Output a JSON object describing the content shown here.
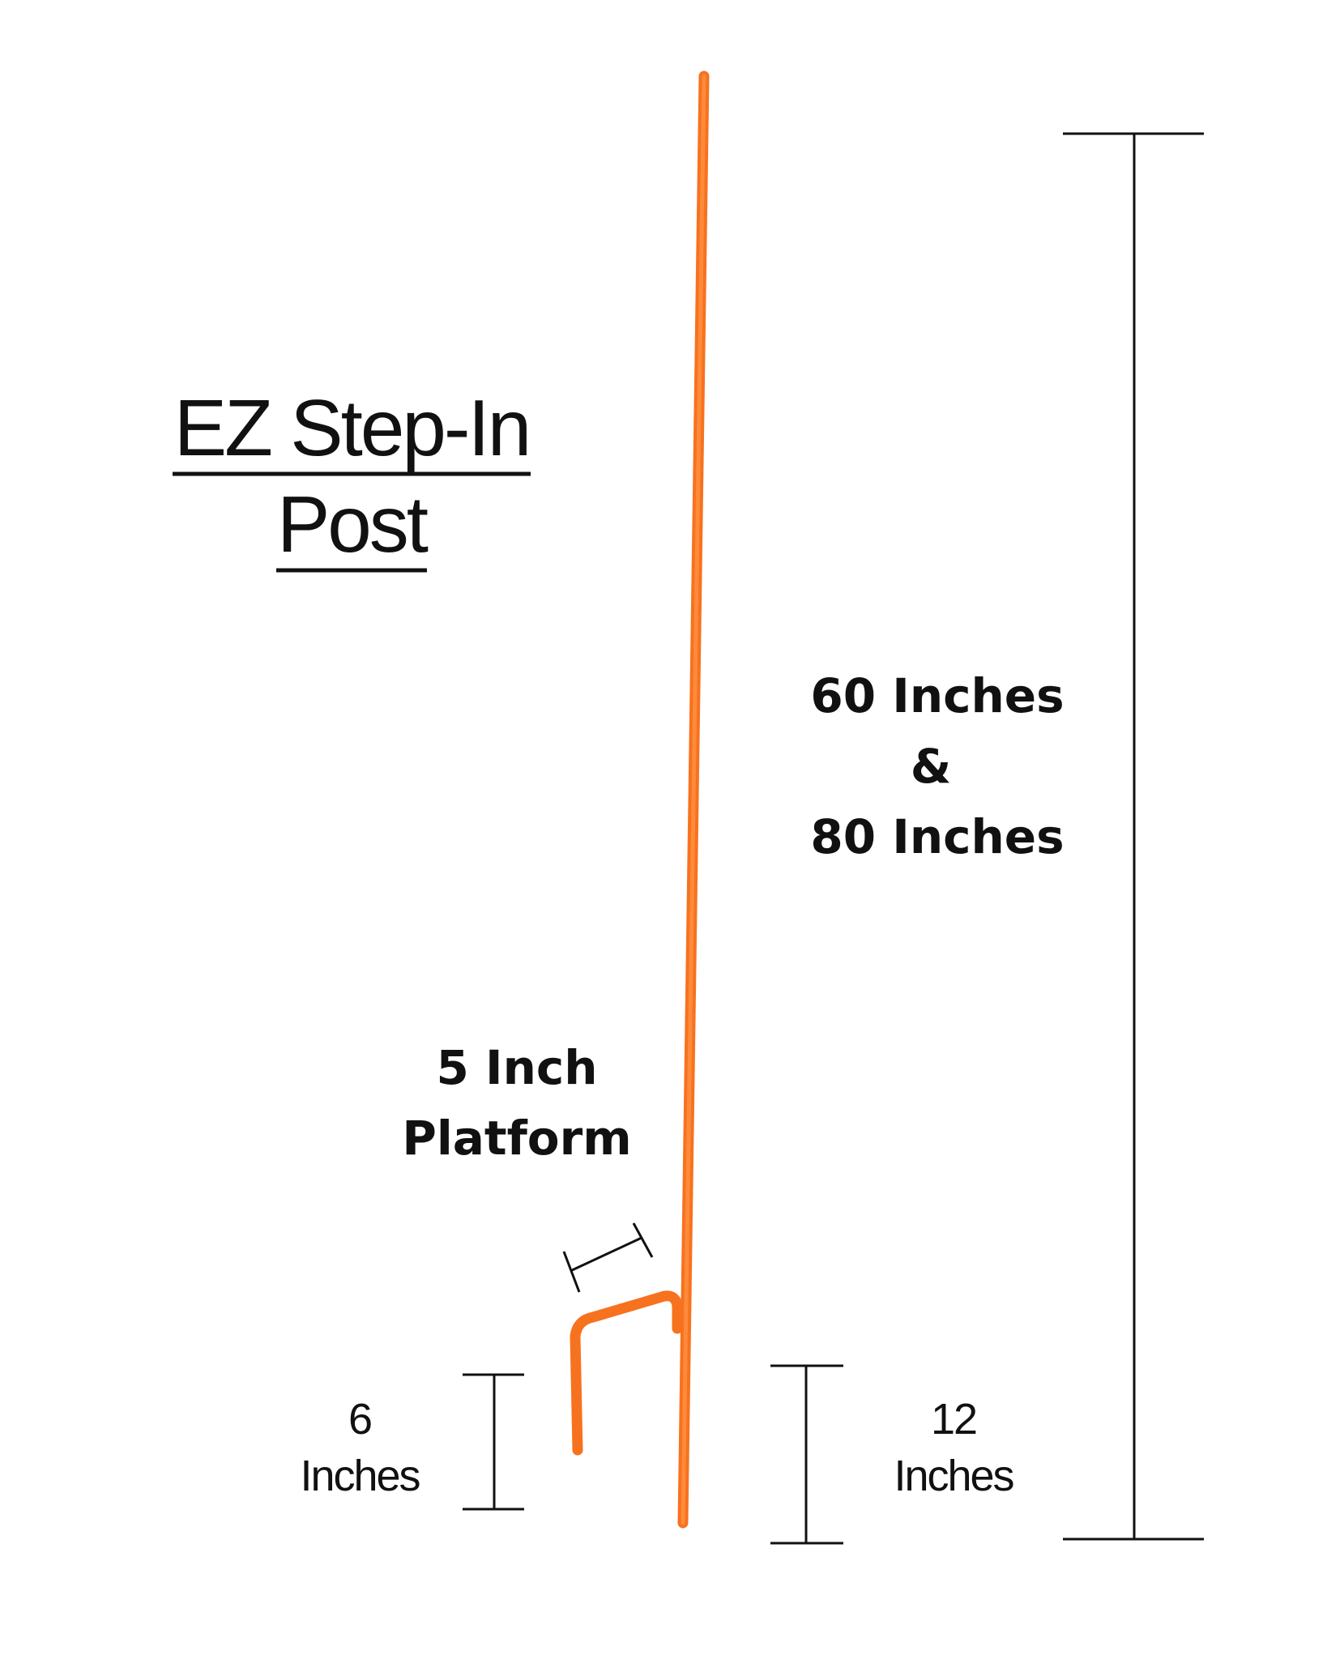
{
  "title": {
    "line1": "EZ Step-In",
    "line2": "Post"
  },
  "labels": {
    "height_line1": "60 Inches",
    "height_line2": "&",
    "height_line3": "80 Inches",
    "platform_line1": "5 Inch",
    "platform_line2": "Platform",
    "spike_line1": "6",
    "spike_line2": "Inches",
    "ground_line1": "12",
    "ground_line2": "Inches"
  },
  "colors": {
    "post": "#f7721f",
    "text": "#111111",
    "background": "#ffffff"
  }
}
